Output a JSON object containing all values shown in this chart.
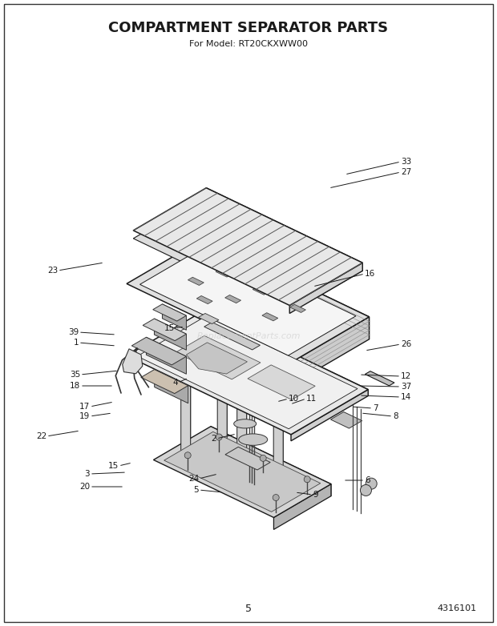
{
  "title": "COMPARTMENT SEPARATOR PARTS",
  "subtitle": "For Model: RT20CKXWW00",
  "page_number": "5",
  "part_number": "4316101",
  "background_color": "#ffffff",
  "title_fontsize": 13,
  "subtitle_fontsize": 8,
  "text_color": "#1a1a1a",
  "watermark": "ReplacementParts.com",
  "line_color": "#1a1a1a",
  "fill_light": "#f0f0f0",
  "fill_mid": "#d8d8d8",
  "fill_dark": "#b0b0b0"
}
